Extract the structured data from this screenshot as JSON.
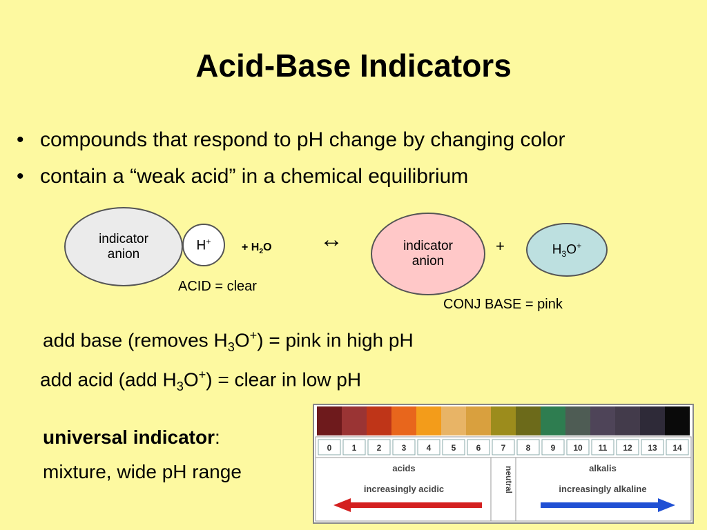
{
  "title": "Acid-Base Indicators",
  "bullets": [
    "compounds that respond to pH change by changing color",
    "contain a “weak acid” in a chemical equilibrium"
  ],
  "diagram": {
    "acid_anion": "indicator anion",
    "h_ion": [
      "H",
      "+"
    ],
    "water": [
      "+ H",
      "2",
      "O"
    ],
    "arrow": "↔",
    "base_anion": "indicator anion",
    "plus": "+",
    "hydronium": [
      "H",
      "3",
      "O",
      "+"
    ],
    "acid_label": "ACID = clear",
    "base_label": "CONJ BASE = pink"
  },
  "notes": [
    [
      "add base (removes H",
      "3",
      "O",
      "+",
      ") = pink in high pH"
    ],
    [
      "add acid (add H",
      "3",
      "O",
      "+",
      ") = clear in low pH"
    ]
  ],
  "universal": {
    "term": "universal indicator",
    "colon": ":",
    "description": "mixture, wide pH range"
  },
  "ph_scale": {
    "values": [
      0,
      1,
      2,
      3,
      4,
      5,
      6,
      7,
      8,
      9,
      10,
      11,
      12,
      13,
      14
    ],
    "colors": [
      "#6e1a1c",
      "#9a3434",
      "#bf3518",
      "#e8661c",
      "#f39c1a",
      "#e8b466",
      "#d9a03e",
      "#9c8c1c",
      "#6c6a1a",
      "#2e7d50",
      "#4e5c54",
      "#4e4458",
      "#433b4b",
      "#2e2a38",
      "#0a0a0a"
    ],
    "acids": "acids",
    "increasingly_acidic": "increasingly acidic",
    "neutral": "neutral",
    "alkalis": "alkalis",
    "increasingly_alkaline": "increasingly alkaline"
  }
}
